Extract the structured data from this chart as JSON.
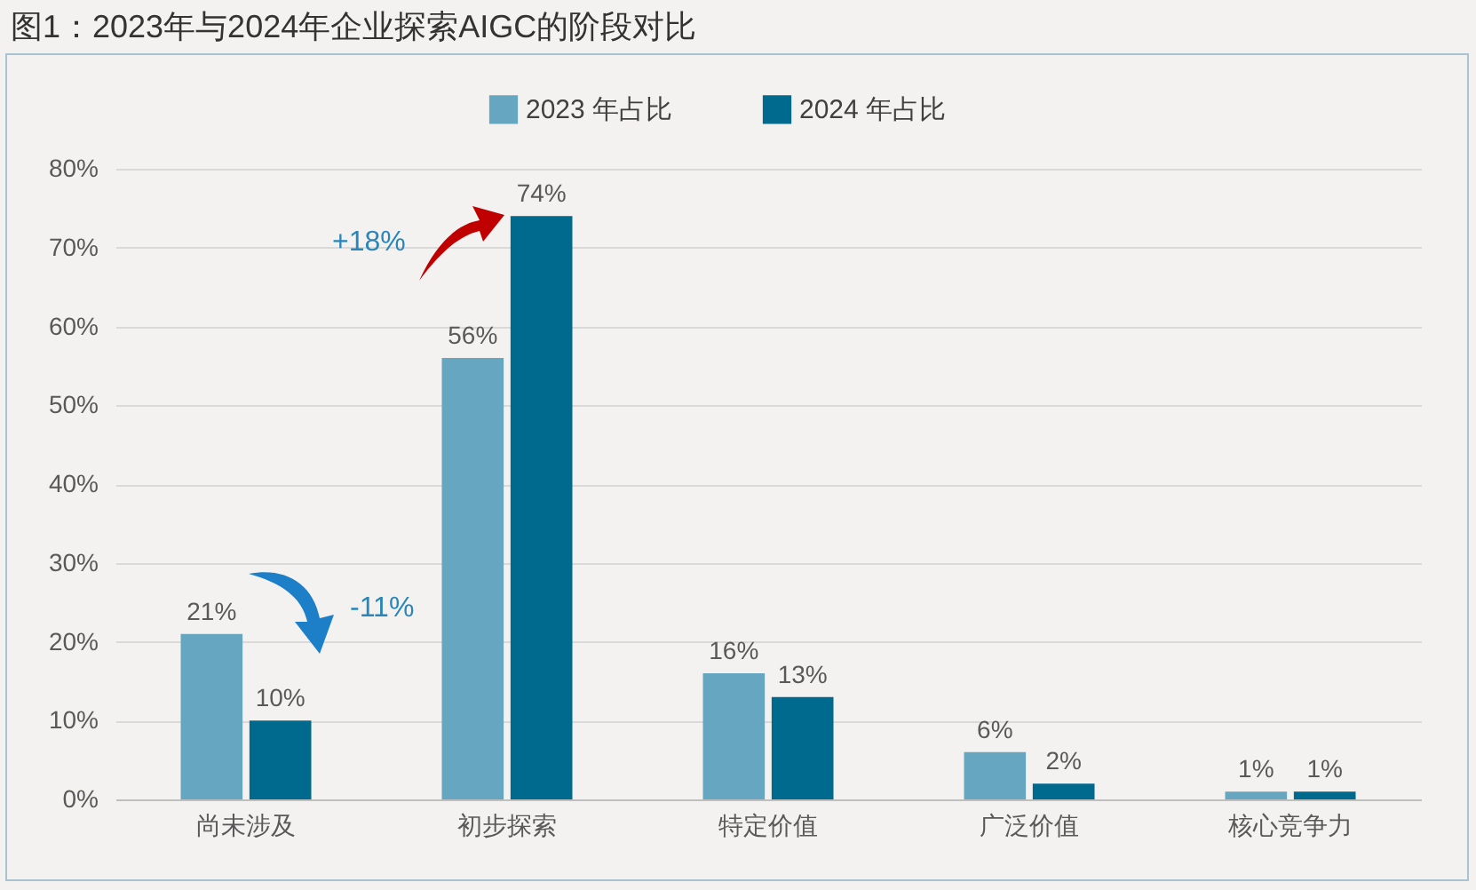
{
  "chart_data": {
    "type": "bar",
    "title": "图1：2023年与2024年企业探索AIGC的阶段对比",
    "categories": [
      "尚未涉及",
      "初步探索",
      "特定价值",
      "广泛价值",
      "核心竞争力"
    ],
    "series": [
      {
        "name": "2023 年占比",
        "color": "#66a6c0",
        "values": [
          21,
          56,
          16,
          6,
          1
        ],
        "value_labels": [
          "21%",
          "56%",
          "16%",
          "6%",
          "1%"
        ]
      },
      {
        "name": "2024 年占比",
        "color": "#006a8e",
        "values": [
          10,
          74,
          13,
          2,
          1
        ],
        "value_labels": [
          "10%",
          "74%",
          "13%",
          "2%",
          "1%"
        ]
      }
    ],
    "ylim": [
      0,
      80
    ],
    "yticks": [
      {
        "value": 0,
        "label": "0%"
      },
      {
        "value": 10,
        "label": "10%"
      },
      {
        "value": 20,
        "label": "20%"
      },
      {
        "value": 30,
        "label": "30%"
      },
      {
        "value": 40,
        "label": "40%"
      },
      {
        "value": 50,
        "label": "50%"
      },
      {
        "value": 60,
        "label": "60%"
      },
      {
        "value": 70,
        "label": "70%"
      },
      {
        "value": 80,
        "label": "80%"
      }
    ],
    "annotations": [
      "+18%",
      "-11%"
    ],
    "grid": "y",
    "legend": "top"
  }
}
